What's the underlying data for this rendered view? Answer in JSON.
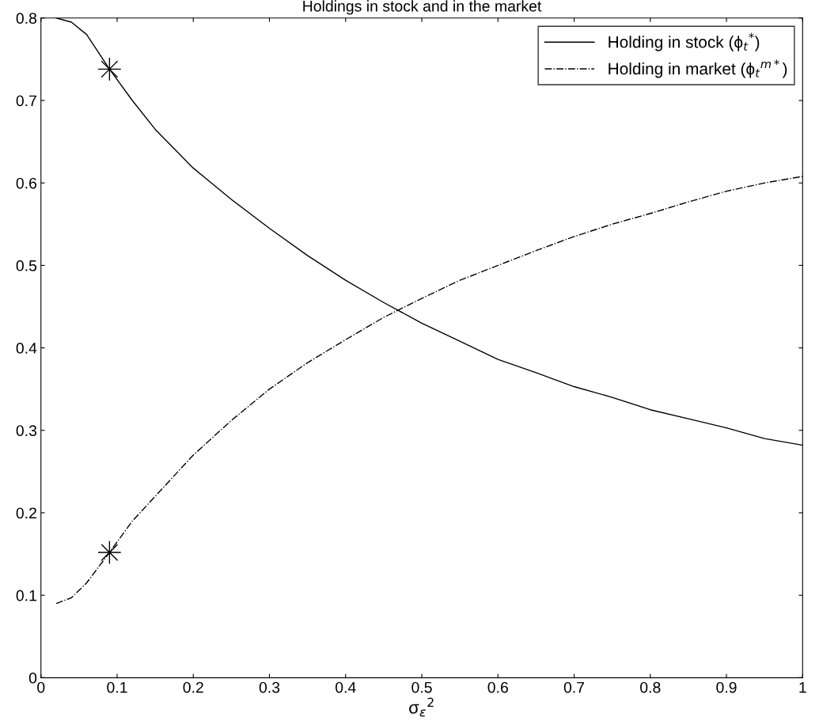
{
  "chart_data": {
    "type": "line",
    "title": "Holdings in stock and in the market",
    "xlabel": "σ$_{ε}$$^{2}$",
    "xlim": [
      0,
      1
    ],
    "xticks": [
      0,
      0.1,
      0.2,
      0.3,
      0.4,
      0.5,
      0.6,
      0.7,
      0.8,
      0.9,
      1
    ],
    "ylim": [
      0,
      0.8
    ],
    "yticks": [
      0,
      0.1,
      0.2,
      0.3,
      0.4,
      0.5,
      0.6,
      0.7,
      0.8
    ],
    "grid": false,
    "legend": "top right",
    "series": [
      {
        "name": "Holding in stock (ϕ$_{t}$$^{*}$)",
        "color": "#000000",
        "line_style": "solid",
        "x": [
          0.02,
          0.04,
          0.06,
          0.09,
          0.12,
          0.15,
          0.2,
          0.25,
          0.3,
          0.35,
          0.4,
          0.45,
          0.5,
          0.55,
          0.6,
          0.65,
          0.7,
          0.75,
          0.8,
          0.85,
          0.9,
          0.95,
          1.0
        ],
        "values": [
          0.8,
          0.795,
          0.78,
          0.738,
          0.7,
          0.665,
          0.618,
          0.58,
          0.545,
          0.512,
          0.482,
          0.455,
          0.43,
          0.408,
          0.386,
          0.37,
          0.353,
          0.34,
          0.325,
          0.314,
          0.303,
          0.29,
          0.282
        ]
      },
      {
        "name": "Holding in market (ϕ$_{t}$$^{m*}$)",
        "color": "#000000",
        "line_style": "dashdot",
        "x": [
          0.02,
          0.04,
          0.06,
          0.09,
          0.12,
          0.15,
          0.2,
          0.25,
          0.3,
          0.35,
          0.4,
          0.45,
          0.5,
          0.55,
          0.6,
          0.65,
          0.7,
          0.75,
          0.8,
          0.85,
          0.9,
          0.95,
          1.0
        ],
        "values": [
          0.09,
          0.097,
          0.115,
          0.152,
          0.19,
          0.22,
          0.27,
          0.312,
          0.35,
          0.382,
          0.41,
          0.437,
          0.46,
          0.482,
          0.5,
          0.518,
          0.535,
          0.55,
          0.563,
          0.577,
          0.59,
          0.6,
          0.608
        ]
      },
      {
        "type": "scatter",
        "color": "#000000",
        "marker": "cross",
        "x": [
          0.09,
          0.09
        ],
        "values": [
          0.738,
          0.152
        ]
      }
    ]
  }
}
